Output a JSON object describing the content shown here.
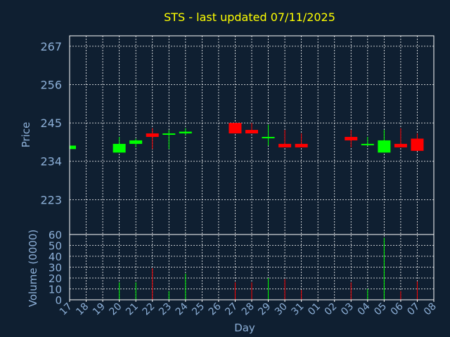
{
  "chart_data": {
    "type": "candlestick",
    "title": "STS - last updated 07/11/2025",
    "xlabel": "Day",
    "colors": {
      "up": "#00ff00",
      "down": "#ff0000",
      "background": "#0f1f31",
      "grid": "#ffffff",
      "text": "#8db0d8",
      "title": "#ffff00"
    },
    "x_ticks": [
      "17",
      "18",
      "19",
      "20",
      "21",
      "22",
      "23",
      "24",
      "25",
      "26",
      "27",
      "28",
      "29",
      "30",
      "31",
      "01",
      "02",
      "03",
      "04",
      "05",
      "06",
      "07",
      "08"
    ],
    "price_panel": {
      "ylabel": "Price",
      "ylim": [
        213,
        270
      ],
      "y_ticks": [
        223,
        234,
        245,
        256,
        267
      ],
      "grid": true
    },
    "volume_panel": {
      "ylabel": "Volume (0000)",
      "ylim": [
        0,
        60
      ],
      "y_ticks": [
        0,
        10,
        20,
        30,
        40,
        50,
        60
      ],
      "grid": true
    },
    "candles": [
      {
        "day": "17",
        "open": 237.5,
        "high": 238.5,
        "low": 237.5,
        "close": 238.5,
        "volume": 0
      },
      {
        "day": "20",
        "open": 236.5,
        "high": 241.0,
        "low": 236.5,
        "close": 239.0,
        "volume": 16
      },
      {
        "day": "21",
        "open": 239.0,
        "high": 240.5,
        "low": 238.0,
        "close": 240.0,
        "volume": 16
      },
      {
        "day": "22",
        "open": 242.0,
        "high": 243.5,
        "low": 237.5,
        "close": 241.0,
        "volume": 29
      },
      {
        "day": "23",
        "open": 242.0,
        "high": 243.0,
        "low": 237.5,
        "close": 242.0,
        "volume": 8
      },
      {
        "day": "24",
        "open": 242.0,
        "high": 243.5,
        "low": 241.5,
        "close": 242.5,
        "volume": 24
      },
      {
        "day": "27",
        "open": 245.0,
        "high": 245.0,
        "low": 242.0,
        "close": 242.0,
        "volume": 16
      },
      {
        "day": "28",
        "open": 243.0,
        "high": 245.0,
        "low": 242.0,
        "close": 242.0,
        "volume": 16
      },
      {
        "day": "29",
        "open": 241.0,
        "high": 244.5,
        "low": 238.5,
        "close": 241.0,
        "volume": 20
      },
      {
        "day": "30",
        "open": 239.0,
        "high": 243.0,
        "low": 238.0,
        "close": 238.0,
        "volume": 19
      },
      {
        "day": "31",
        "open": 239.0,
        "high": 242.0,
        "low": 238.0,
        "close": 238.0,
        "volume": 9
      },
      {
        "day": "03",
        "open": 241.0,
        "high": 243.0,
        "low": 238.0,
        "close": 240.0,
        "volume": 16
      },
      {
        "day": "04",
        "open": 239.0,
        "high": 241.0,
        "low": 238.5,
        "close": 239.0,
        "volume": 10
      },
      {
        "day": "05",
        "open": 236.5,
        "high": 243.0,
        "low": 236.5,
        "close": 240.0,
        "volume": 57
      },
      {
        "day": "06",
        "open": 239.0,
        "high": 243.5,
        "low": 238.0,
        "close": 238.0,
        "volume": 8
      },
      {
        "day": "07",
        "open": 240.5,
        "high": 242.0,
        "low": 237.0,
        "close": 237.0,
        "volume": 17
      }
    ]
  }
}
